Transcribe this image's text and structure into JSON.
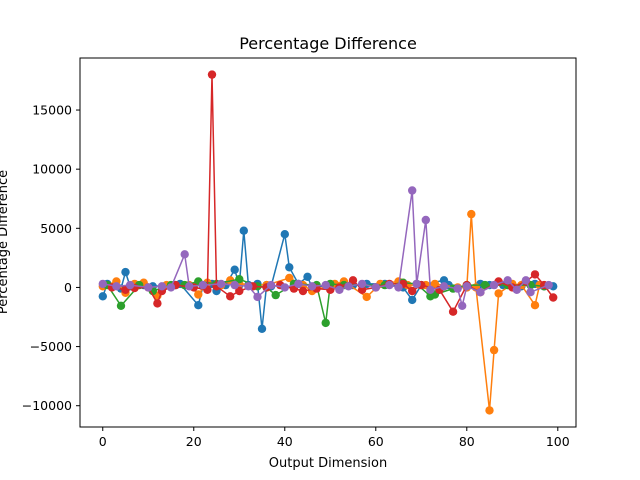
{
  "chart_data": {
    "type": "line",
    "title": "Percentage Difference",
    "xlabel": "Output Dimension",
    "ylabel": "Percentage Difference",
    "xlim": [
      -5,
      104
    ],
    "ylim": [
      -11800,
      19400
    ],
    "xticks": [
      0,
      20,
      40,
      60,
      80,
      100
    ],
    "yticks": [
      -10000,
      -5000,
      0,
      5000,
      10000,
      15000
    ],
    "grid": false,
    "markers": "circle",
    "series": [
      {
        "color": "#1f77b4",
        "points": [
          [
            0,
            -750
          ],
          [
            1,
            300
          ],
          [
            4,
            -100
          ],
          [
            5,
            1300
          ],
          [
            6,
            100
          ],
          [
            9,
            200
          ],
          [
            11,
            100
          ],
          [
            16,
            200
          ],
          [
            17,
            300
          ],
          [
            21,
            -1500
          ],
          [
            22,
            100
          ],
          [
            24,
            300
          ],
          [
            25,
            -300
          ],
          [
            27,
            200
          ],
          [
            29,
            1500
          ],
          [
            30,
            200
          ],
          [
            31,
            4800
          ],
          [
            32,
            200
          ],
          [
            34,
            300
          ],
          [
            35,
            -3500
          ],
          [
            36,
            200
          ],
          [
            37,
            100
          ],
          [
            40,
            4500
          ],
          [
            41,
            1700
          ],
          [
            43,
            300
          ],
          [
            45,
            900
          ],
          [
            46,
            0
          ],
          [
            50,
            200
          ],
          [
            55,
            200
          ],
          [
            58,
            300
          ],
          [
            62,
            300
          ],
          [
            66,
            0
          ],
          [
            68,
            -1050
          ],
          [
            70,
            200
          ],
          [
            75,
            600
          ],
          [
            76,
            200
          ],
          [
            80,
            0
          ],
          [
            83,
            300
          ],
          [
            85,
            200
          ],
          [
            88,
            200
          ],
          [
            92,
            100
          ],
          [
            95,
            300
          ],
          [
            97,
            100
          ],
          [
            99,
            100
          ]
        ]
      },
      {
        "color": "#ff7f0e",
        "points": [
          [
            0,
            100
          ],
          [
            3,
            500
          ],
          [
            5,
            -450
          ],
          [
            7,
            300
          ],
          [
            9,
            400
          ],
          [
            12,
            -700
          ],
          [
            14,
            200
          ],
          [
            19,
            200
          ],
          [
            21,
            -600
          ],
          [
            23,
            400
          ],
          [
            26,
            200
          ],
          [
            28,
            600
          ],
          [
            30,
            300
          ],
          [
            36,
            200
          ],
          [
            41,
            800
          ],
          [
            44,
            200
          ],
          [
            46,
            -300
          ],
          [
            51,
            300
          ],
          [
            53,
            500
          ],
          [
            58,
            -800
          ],
          [
            61,
            300
          ],
          [
            65,
            500
          ],
          [
            67,
            200
          ],
          [
            71,
            200
          ],
          [
            73,
            300
          ],
          [
            78,
            0
          ],
          [
            80,
            0
          ],
          [
            81,
            6200
          ],
          [
            82,
            0
          ],
          [
            85,
            -10400
          ],
          [
            86,
            -5300
          ],
          [
            87,
            -500
          ],
          [
            90,
            300
          ],
          [
            92,
            200
          ],
          [
            95,
            -1500
          ],
          [
            96,
            200
          ]
        ]
      },
      {
        "color": "#2ca02c",
        "points": [
          [
            1,
            200
          ],
          [
            4,
            -1550
          ],
          [
            8,
            200
          ],
          [
            11,
            -300
          ],
          [
            15,
            200
          ],
          [
            18,
            200
          ],
          [
            21,
            500
          ],
          [
            25,
            300
          ],
          [
            30,
            700
          ],
          [
            34,
            100
          ],
          [
            36,
            0
          ],
          [
            38,
            -650
          ],
          [
            42,
            300
          ],
          [
            47,
            200
          ],
          [
            49,
            -3000
          ],
          [
            50,
            300
          ],
          [
            53,
            200
          ],
          [
            57,
            200
          ],
          [
            62,
            200
          ],
          [
            66,
            400
          ],
          [
            69,
            300
          ],
          [
            72,
            -750
          ],
          [
            73,
            -600
          ],
          [
            77,
            -100
          ],
          [
            80,
            200
          ],
          [
            84,
            200
          ],
          [
            89,
            200
          ],
          [
            94,
            200
          ],
          [
            97,
            100
          ]
        ]
      },
      {
        "color": "#d62728",
        "points": [
          [
            2,
            0
          ],
          [
            5,
            -200
          ],
          [
            7,
            -50
          ],
          [
            10,
            0
          ],
          [
            12,
            -1350
          ],
          [
            13,
            -300
          ],
          [
            16,
            200
          ],
          [
            20,
            0
          ],
          [
            23,
            -200
          ],
          [
            24,
            18000
          ],
          [
            25,
            100
          ],
          [
            28,
            -750
          ],
          [
            30,
            -300
          ],
          [
            33,
            100
          ],
          [
            36,
            0
          ],
          [
            39,
            200
          ],
          [
            42,
            -100
          ],
          [
            44,
            -300
          ],
          [
            47,
            -100
          ],
          [
            50,
            -200
          ],
          [
            52,
            0
          ],
          [
            55,
            600
          ],
          [
            57,
            -200
          ],
          [
            60,
            0
          ],
          [
            63,
            300
          ],
          [
            66,
            300
          ],
          [
            68,
            -300
          ],
          [
            70,
            200
          ],
          [
            74,
            -200
          ],
          [
            77,
            -2050
          ],
          [
            80,
            200
          ],
          [
            83,
            -400
          ],
          [
            87,
            500
          ],
          [
            90,
            0
          ],
          [
            93,
            500
          ],
          [
            95,
            1100
          ],
          [
            97,
            200
          ],
          [
            99,
            -850
          ]
        ]
      },
      {
        "color": "#9467bd",
        "points": [
          [
            0,
            300
          ],
          [
            3,
            100
          ],
          [
            6,
            200
          ],
          [
            10,
            0
          ],
          [
            13,
            100
          ],
          [
            15,
            0
          ],
          [
            18,
            2800
          ],
          [
            19,
            100
          ],
          [
            22,
            200
          ],
          [
            26,
            300
          ],
          [
            29,
            200
          ],
          [
            32,
            100
          ],
          [
            34,
            -800
          ],
          [
            37,
            200
          ],
          [
            40,
            0
          ],
          [
            43,
            300
          ],
          [
            46,
            100
          ],
          [
            49,
            200
          ],
          [
            52,
            -200
          ],
          [
            54,
            100
          ],
          [
            57,
            300
          ],
          [
            60,
            0
          ],
          [
            63,
            200
          ],
          [
            65,
            0
          ],
          [
            68,
            8200
          ],
          [
            69,
            300
          ],
          [
            71,
            5700
          ],
          [
            72,
            -200
          ],
          [
            75,
            100
          ],
          [
            78,
            -100
          ],
          [
            79,
            -1550
          ],
          [
            80,
            100
          ],
          [
            83,
            -400
          ],
          [
            86,
            200
          ],
          [
            89,
            600
          ],
          [
            91,
            -200
          ],
          [
            93,
            600
          ],
          [
            94,
            -400
          ],
          [
            98,
            200
          ]
        ]
      }
    ]
  }
}
